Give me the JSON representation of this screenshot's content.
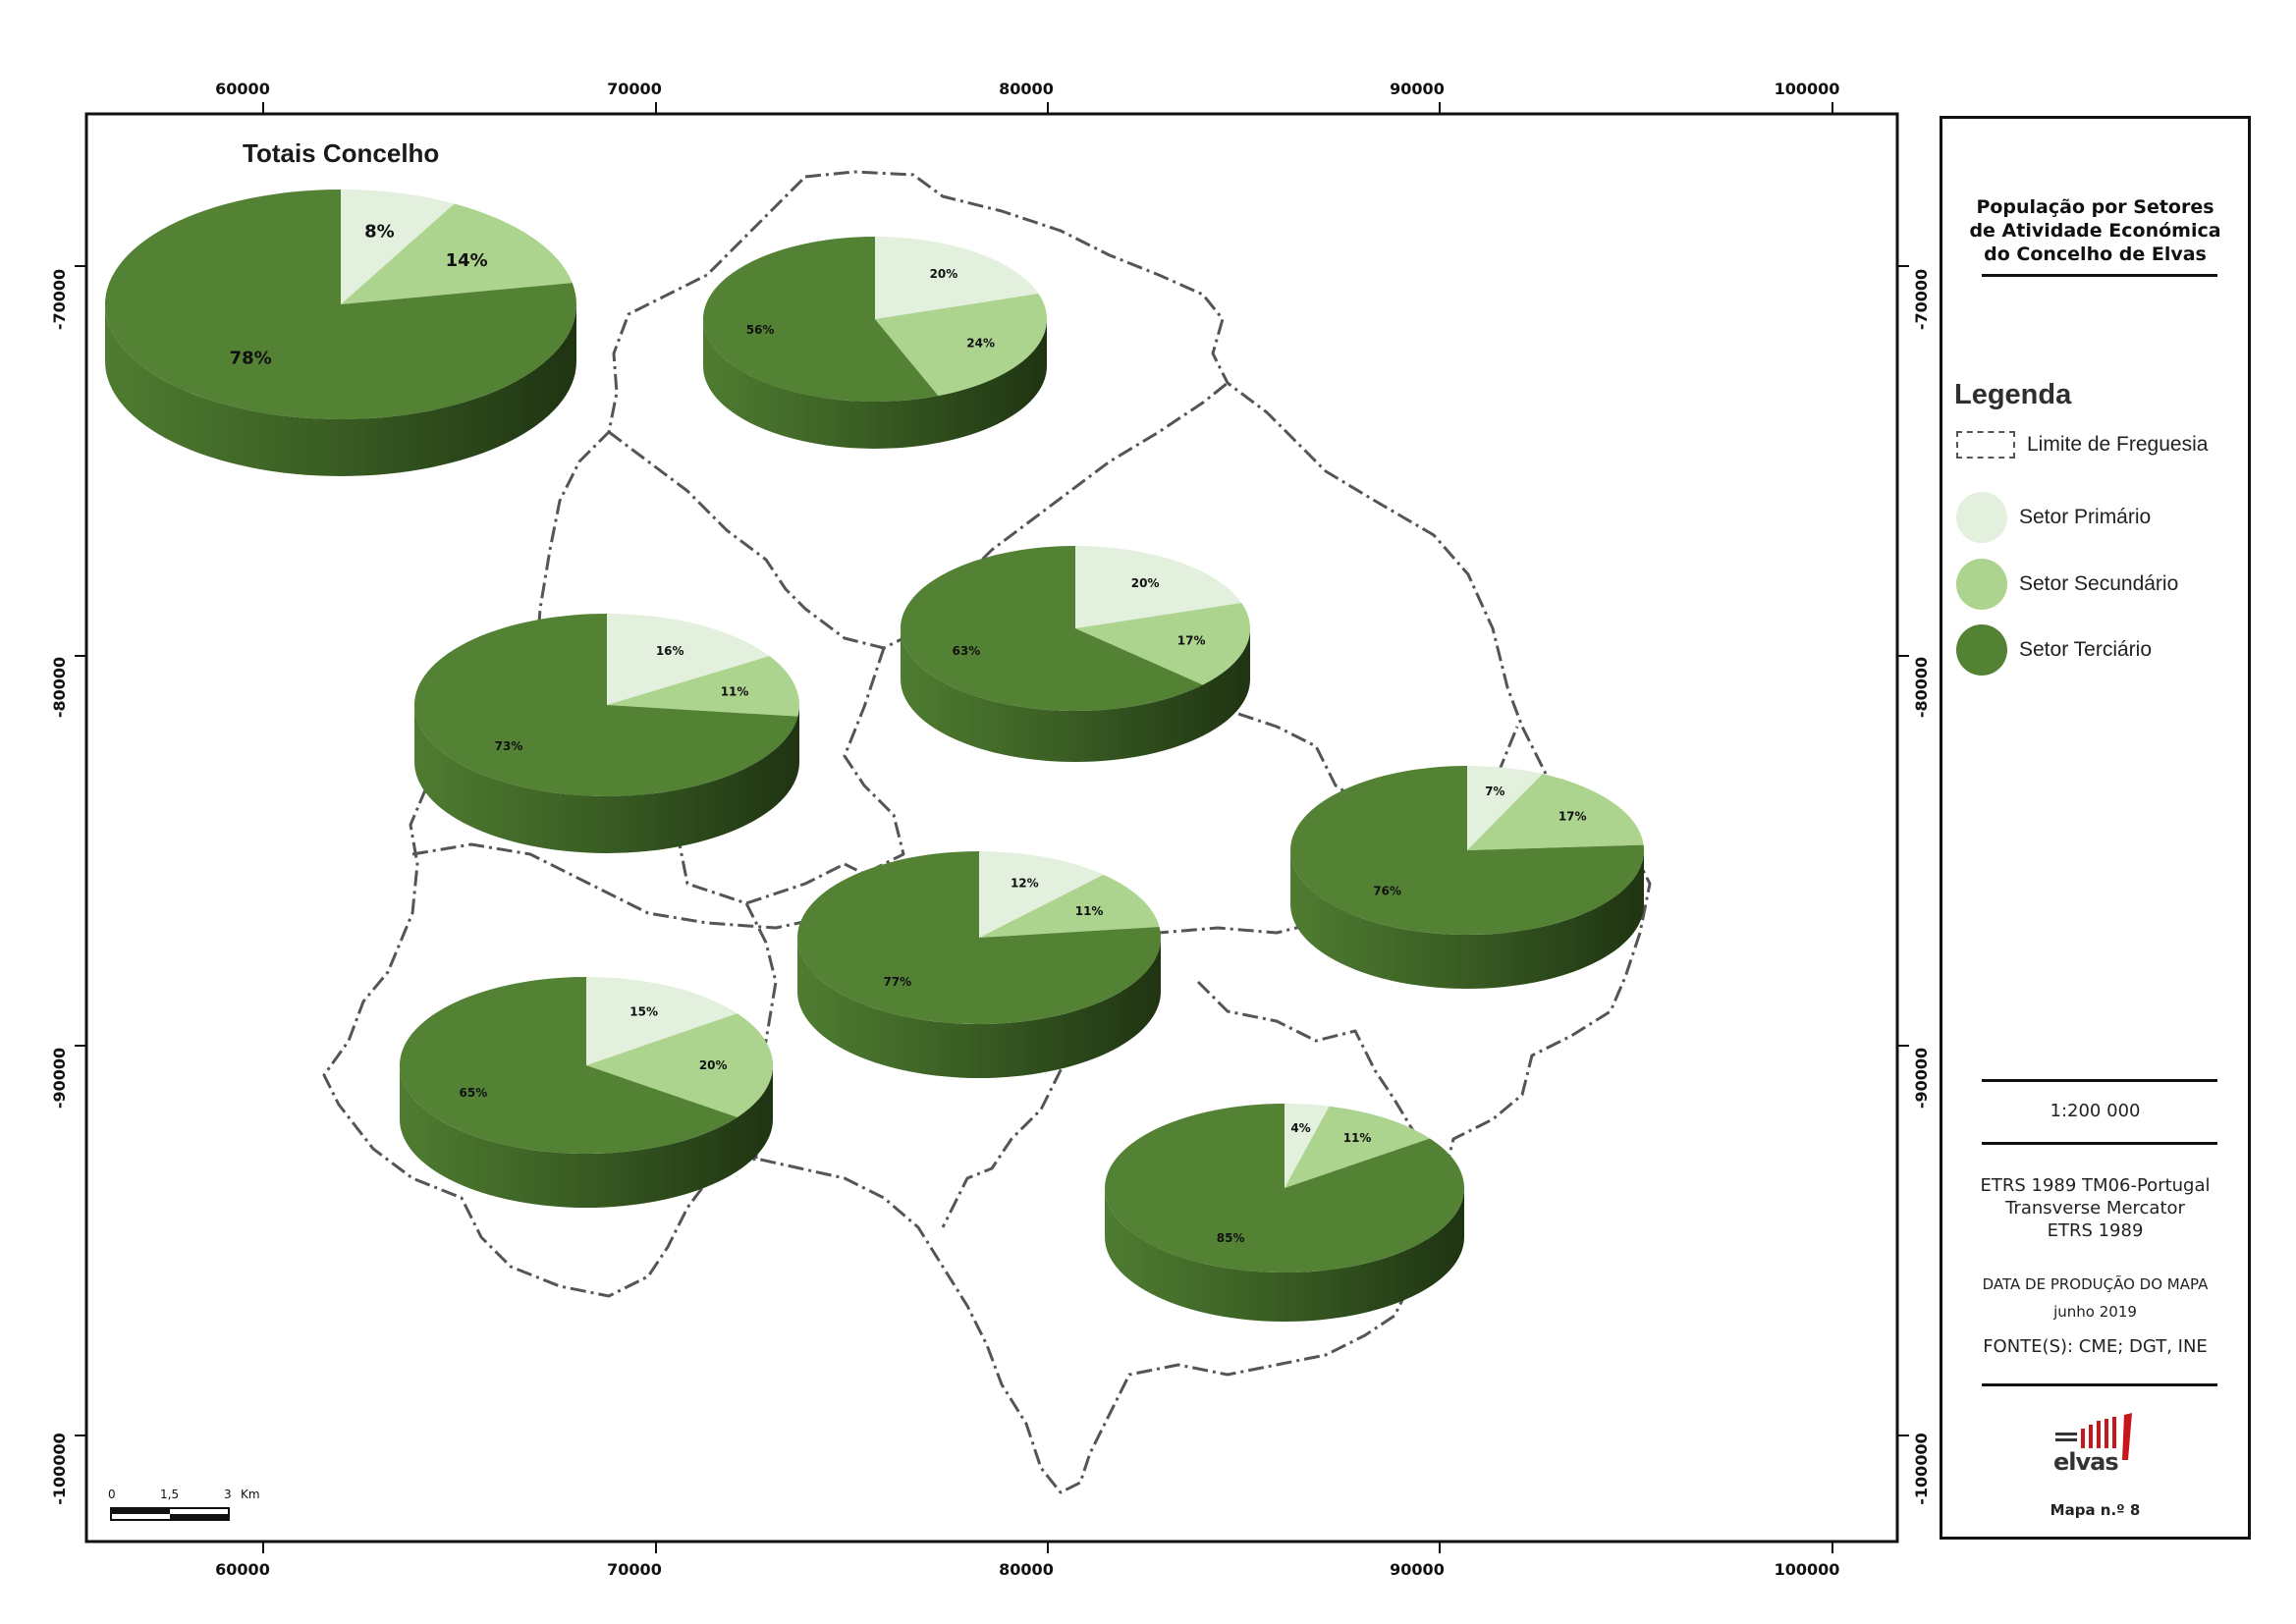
{
  "map": {
    "inset_title": "Totais Concelho",
    "x_ticks": [
      "60000",
      "70000",
      "80000",
      "90000",
      "100000"
    ],
    "y_ticks": [
      "-70000",
      "-80000",
      "-90000",
      "-100000"
    ],
    "scale_bar": {
      "labels": [
        "0",
        "1,5",
        "3",
        "Km"
      ]
    },
    "colors": {
      "primario": "#e3f0dd",
      "secundario": "#acd48e",
      "terciario": "#538234",
      "boundary": "#555555"
    },
    "pies": [
      {
        "name": "totais-concelho",
        "values": [
          8,
          14,
          78
        ],
        "labels": [
          "8%",
          "14%",
          "78%"
        ]
      },
      {
        "name": "pie-north",
        "values": [
          20,
          24,
          56
        ],
        "labels": [
          "20%",
          "24%",
          "56%"
        ]
      },
      {
        "name": "pie-center-east",
        "values": [
          20,
          17,
          63
        ],
        "labels": [
          "20%",
          "17%",
          "63%"
        ]
      },
      {
        "name": "pie-center-west",
        "values": [
          16,
          11,
          73
        ],
        "labels": [
          "16%",
          "11%",
          "73%"
        ]
      },
      {
        "name": "pie-east",
        "values": [
          7,
          17,
          76
        ],
        "labels": [
          "7%",
          "17%",
          "76%"
        ]
      },
      {
        "name": "pie-center-south",
        "values": [
          12,
          11,
          77
        ],
        "labels": [
          "12%",
          "11%",
          "77%"
        ]
      },
      {
        "name": "pie-southwest",
        "values": [
          15,
          20,
          65
        ],
        "labels": [
          "15%",
          "20%",
          "65%"
        ]
      },
      {
        "name": "pie-south",
        "values": [
          4,
          11,
          85
        ],
        "labels": [
          "4%",
          "11%",
          "85%"
        ]
      }
    ]
  },
  "panel": {
    "title_lines": [
      "População por Setores",
      "de Atividade Económica",
      "do Concelho de Elvas"
    ],
    "legend_title": "Legenda",
    "legend_items": [
      {
        "label": "Limite de Freguesia",
        "icon": "dashed-boundary-icon"
      },
      {
        "label": "Setor Primário",
        "color": "#e3f0dd"
      },
      {
        "label": "Setor Secundário",
        "color": "#acd48e"
      },
      {
        "label": "Setor Terciário",
        "color": "#538234"
      }
    ],
    "scale": "1:200 000",
    "projection_lines": [
      "ETRS 1989 TM06-Portugal",
      "Transverse Mercator",
      "ETRS 1989"
    ],
    "production_label": "DATA DE PRODUÇÃO DO MAPA",
    "production_date": "junho 2019",
    "sources": "FONTE(S): CME; DGT, INE",
    "logo_text": "elvas",
    "map_number": "Mapa n.º 8"
  }
}
